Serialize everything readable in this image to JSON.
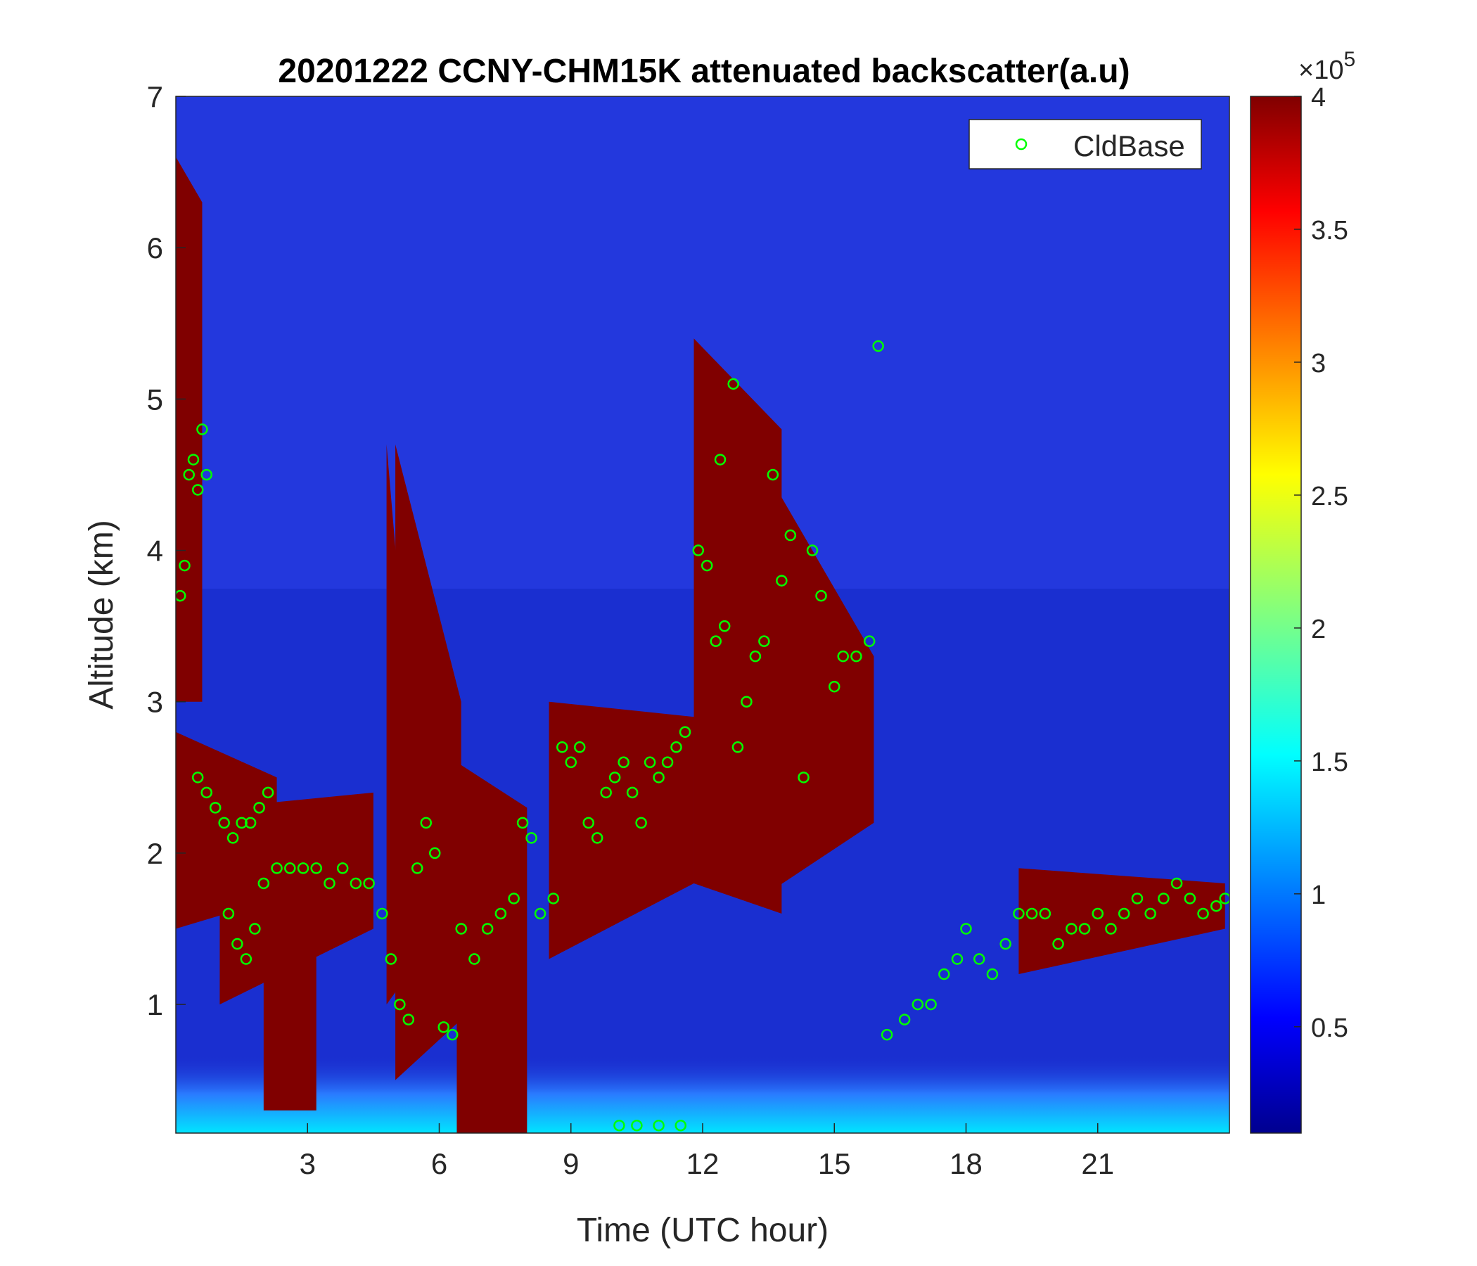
{
  "chart_data": {
    "type": "heatmap",
    "title": "20201222 CCNY-CHM15K attenuated backscatter(a.u)",
    "xlabel": "Time (UTC hour)",
    "ylabel": "Altitude (km)",
    "xlim": [
      0,
      24
    ],
    "ylim": [
      0.15,
      7
    ],
    "xticks": [
      3,
      6,
      9,
      12,
      15,
      18,
      21
    ],
    "xtick_labels": [
      "3",
      "6",
      "9",
      "12",
      "15",
      "18",
      "21"
    ],
    "yticks": [
      1,
      2,
      3,
      4,
      5,
      6,
      7
    ],
    "ytick_labels": [
      "1",
      "2",
      "3",
      "4",
      "5",
      "6",
      "7"
    ],
    "colorbar": {
      "colormap": "jet",
      "clim": [
        0.1,
        4
      ],
      "ticks": [
        0.5,
        1,
        1.5,
        2,
        2.5,
        3,
        3.5,
        4
      ],
      "tick_labels": [
        "0.5",
        "1",
        "1.5",
        "2",
        "2.5",
        "3",
        "3.5",
        "4"
      ],
      "exponent_label_prefix": "×10",
      "exponent": "5"
    },
    "legend": {
      "entries": [
        "CldBase"
      ],
      "placement": "top-right"
    },
    "marker_color": "#00ff00",
    "background_color": "#1a2fd0",
    "cloud_layers": [
      {
        "x": [
          0.0,
          0.6
        ],
        "top": [
          6.6,
          6.3
        ],
        "base": [
          3.0,
          3.0
        ]
      },
      {
        "x": [
          0.0,
          2.3
        ],
        "top": [
          2.8,
          2.5
        ],
        "base": [
          1.5,
          1.7
        ]
      },
      {
        "x": [
          1.0,
          4.5
        ],
        "top": [
          2.3,
          2.4
        ],
        "base": [
          1.0,
          1.5
        ]
      },
      {
        "x": [
          2.0,
          3.2
        ],
        "top": [
          2.1,
          1.9
        ],
        "base": [
          0.3,
          0.3
        ]
      },
      {
        "x": [
          4.8,
          5.3
        ],
        "top": [
          4.7,
          3.0
        ],
        "base": [
          1.0,
          1.2
        ]
      },
      {
        "x": [
          5.0,
          6.5
        ],
        "top": [
          4.7,
          3.0
        ],
        "base": [
          0.5,
          0.9
        ]
      },
      {
        "x": [
          6.4,
          8.0
        ],
        "top": [
          2.6,
          2.3
        ],
        "base": [
          0.15,
          0.15
        ]
      },
      {
        "x": [
          8.5,
          11.8
        ],
        "top": [
          3.0,
          2.9
        ],
        "base": [
          1.3,
          1.8
        ]
      },
      {
        "x": [
          11.8,
          13.8
        ],
        "top": [
          5.4,
          4.8
        ],
        "base": [
          1.8,
          1.6
        ]
      },
      {
        "x": [
          13.3,
          15.9
        ],
        "top": [
          4.6,
          3.3
        ],
        "base": [
          1.7,
          2.2
        ]
      },
      {
        "x": [
          19.2,
          23.9
        ],
        "top": [
          1.9,
          1.8
        ],
        "base": [
          1.2,
          1.5
        ]
      }
    ],
    "cloud_base": [
      {
        "x": 0.1,
        "y": 3.7
      },
      {
        "x": 0.2,
        "y": 3.9
      },
      {
        "x": 0.3,
        "y": 4.5
      },
      {
        "x": 0.4,
        "y": 4.6
      },
      {
        "x": 0.5,
        "y": 4.4
      },
      {
        "x": 0.6,
        "y": 4.8
      },
      {
        "x": 0.7,
        "y": 4.5
      },
      {
        "x": 0.5,
        "y": 2.5
      },
      {
        "x": 0.7,
        "y": 2.4
      },
      {
        "x": 0.9,
        "y": 2.3
      },
      {
        "x": 1.1,
        "y": 2.2
      },
      {
        "x": 1.3,
        "y": 2.1
      },
      {
        "x": 1.5,
        "y": 2.2
      },
      {
        "x": 1.7,
        "y": 2.2
      },
      {
        "x": 1.9,
        "y": 2.3
      },
      {
        "x": 2.1,
        "y": 2.4
      },
      {
        "x": 1.2,
        "y": 1.6
      },
      {
        "x": 1.4,
        "y": 1.4
      },
      {
        "x": 1.6,
        "y": 1.3
      },
      {
        "x": 1.8,
        "y": 1.5
      },
      {
        "x": 2.0,
        "y": 1.8
      },
      {
        "x": 2.3,
        "y": 1.9
      },
      {
        "x": 2.6,
        "y": 1.9
      },
      {
        "x": 2.9,
        "y": 1.9
      },
      {
        "x": 3.2,
        "y": 1.9
      },
      {
        "x": 3.5,
        "y": 1.8
      },
      {
        "x": 3.8,
        "y": 1.9
      },
      {
        "x": 4.1,
        "y": 1.8
      },
      {
        "x": 4.4,
        "y": 1.8
      },
      {
        "x": 4.7,
        "y": 1.6
      },
      {
        "x": 4.9,
        "y": 1.3
      },
      {
        "x": 5.1,
        "y": 1.0
      },
      {
        "x": 5.3,
        "y": 0.9
      },
      {
        "x": 5.5,
        "y": 1.9
      },
      {
        "x": 5.7,
        "y": 2.2
      },
      {
        "x": 5.9,
        "y": 2.0
      },
      {
        "x": 6.1,
        "y": 0.85
      },
      {
        "x": 6.3,
        "y": 0.8
      },
      {
        "x": 6.5,
        "y": 1.5
      },
      {
        "x": 6.8,
        "y": 1.3
      },
      {
        "x": 7.1,
        "y": 1.5
      },
      {
        "x": 7.4,
        "y": 1.6
      },
      {
        "x": 7.7,
        "y": 1.7
      },
      {
        "x": 7.9,
        "y": 2.2
      },
      {
        "x": 8.1,
        "y": 2.1
      },
      {
        "x": 8.3,
        "y": 1.6
      },
      {
        "x": 8.6,
        "y": 1.7
      },
      {
        "x": 8.8,
        "y": 2.7
      },
      {
        "x": 9.0,
        "y": 2.6
      },
      {
        "x": 9.2,
        "y": 2.7
      },
      {
        "x": 9.4,
        "y": 2.2
      },
      {
        "x": 9.6,
        "y": 2.1
      },
      {
        "x": 9.8,
        "y": 2.4
      },
      {
        "x": 10.0,
        "y": 2.5
      },
      {
        "x": 10.2,
        "y": 2.6
      },
      {
        "x": 10.4,
        "y": 2.4
      },
      {
        "x": 10.6,
        "y": 2.2
      },
      {
        "x": 10.8,
        "y": 2.6
      },
      {
        "x": 11.0,
        "y": 2.5
      },
      {
        "x": 11.2,
        "y": 2.6
      },
      {
        "x": 11.4,
        "y": 2.7
      },
      {
        "x": 11.6,
        "y": 2.8
      },
      {
        "x": 10.1,
        "y": 0.2
      },
      {
        "x": 10.5,
        "y": 0.2
      },
      {
        "x": 11.0,
        "y": 0.2
      },
      {
        "x": 11.5,
        "y": 0.2
      },
      {
        "x": 11.9,
        "y": 4.0
      },
      {
        "x": 12.1,
        "y": 3.9
      },
      {
        "x": 12.3,
        "y": 3.4
      },
      {
        "x": 12.5,
        "y": 3.5
      },
      {
        "x": 12.4,
        "y": 4.6
      },
      {
        "x": 12.7,
        "y": 5.1
      },
      {
        "x": 12.8,
        "y": 2.7
      },
      {
        "x": 13.0,
        "y": 3.0
      },
      {
        "x": 13.2,
        "y": 3.3
      },
      {
        "x": 13.4,
        "y": 3.4
      },
      {
        "x": 13.6,
        "y": 4.5
      },
      {
        "x": 13.8,
        "y": 3.8
      },
      {
        "x": 14.0,
        "y": 4.1
      },
      {
        "x": 14.3,
        "y": 2.5
      },
      {
        "x": 14.5,
        "y": 4.0
      },
      {
        "x": 14.7,
        "y": 3.7
      },
      {
        "x": 15.0,
        "y": 3.1
      },
      {
        "x": 15.2,
        "y": 3.3
      },
      {
        "x": 15.5,
        "y": 3.3
      },
      {
        "x": 15.8,
        "y": 3.4
      },
      {
        "x": 16.0,
        "y": 5.35
      },
      {
        "x": 16.2,
        "y": 0.8
      },
      {
        "x": 16.6,
        "y": 0.9
      },
      {
        "x": 16.9,
        "y": 1.0
      },
      {
        "x": 17.2,
        "y": 1.0
      },
      {
        "x": 17.5,
        "y": 1.2
      },
      {
        "x": 17.8,
        "y": 1.3
      },
      {
        "x": 18.0,
        "y": 1.5
      },
      {
        "x": 18.3,
        "y": 1.3
      },
      {
        "x": 18.6,
        "y": 1.2
      },
      {
        "x": 18.9,
        "y": 1.4
      },
      {
        "x": 19.2,
        "y": 1.6
      },
      {
        "x": 19.5,
        "y": 1.6
      },
      {
        "x": 19.8,
        "y": 1.6
      },
      {
        "x": 20.1,
        "y": 1.4
      },
      {
        "x": 20.4,
        "y": 1.5
      },
      {
        "x": 20.7,
        "y": 1.5
      },
      {
        "x": 21.0,
        "y": 1.6
      },
      {
        "x": 21.3,
        "y": 1.5
      },
      {
        "x": 21.6,
        "y": 1.6
      },
      {
        "x": 21.9,
        "y": 1.7
      },
      {
        "x": 22.2,
        "y": 1.6
      },
      {
        "x": 22.5,
        "y": 1.7
      },
      {
        "x": 22.8,
        "y": 1.8
      },
      {
        "x": 23.1,
        "y": 1.7
      },
      {
        "x": 23.4,
        "y": 1.6
      },
      {
        "x": 23.7,
        "y": 1.65
      },
      {
        "x": 23.9,
        "y": 1.7
      }
    ]
  }
}
